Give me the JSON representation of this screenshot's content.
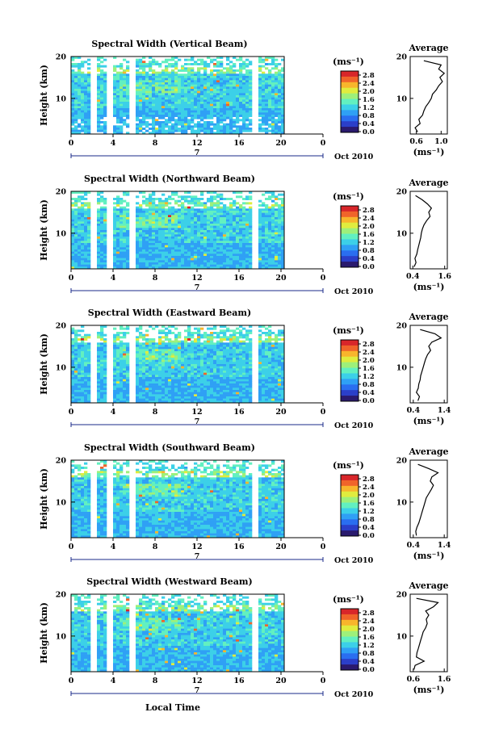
{
  "figure": {
    "date_label": "Oct 2010",
    "day_label": "7",
    "xlabel": "Local Time",
    "ylabel": "Height (km)",
    "colorbar_unit": "(ms⁻¹)",
    "average_title": "Average",
    "average_xlabel": "(ms⁻¹)",
    "colormap": [
      "#2a1a6e",
      "#2b3fc9",
      "#2a6ef0",
      "#2fa0f5",
      "#3cd0e8",
      "#62f0c0",
      "#9ef07a",
      "#e0ec3e",
      "#f8b52c",
      "#f0642a",
      "#d8262a"
    ]
  },
  "chart_data": [
    {
      "type": "heatmap",
      "title": "Spectral Width (Vertical Beam)",
      "x_ticks": [
        "0",
        "4",
        "8",
        "12",
        "16",
        "20",
        "0"
      ],
      "y_ticks": [
        "20",
        "10"
      ],
      "xlim": [
        0,
        24
      ],
      "ylim": [
        1.5,
        20
      ],
      "colorbar_ticks": [
        "2.8",
        "2.4",
        "2.0",
        "1.6",
        "1.2",
        "0.8",
        "0.4",
        "0.0"
      ],
      "data_gaps_hours": [
        2.0,
        3.6,
        5.8,
        17.5
      ],
      "average_profile": {
        "type": "line",
        "x_ticks": [
          "0.6",
          "1.0"
        ],
        "xlim": [
          0.5,
          1.1
        ],
        "y_ticks": [
          "20",
          "10"
        ],
        "ylim": [
          1.5,
          20
        ],
        "height_km": [
          2,
          3,
          4,
          5,
          6,
          7,
          8,
          9,
          10,
          11,
          12,
          13,
          14,
          15,
          16,
          17,
          18,
          19
        ],
        "value": [
          0.62,
          0.58,
          0.66,
          0.64,
          0.7,
          0.72,
          0.75,
          0.8,
          0.84,
          0.86,
          0.92,
          0.96,
          1.02,
          0.98,
          1.05,
          0.96,
          1.0,
          0.72
        ]
      }
    },
    {
      "type": "heatmap",
      "title": "Spectral Width (Northward Beam)",
      "x_ticks": [
        "0",
        "4",
        "8",
        "12",
        "16",
        "20",
        "0"
      ],
      "y_ticks": [
        "20",
        "10"
      ],
      "xlim": [
        0,
        24
      ],
      "ylim": [
        1.5,
        20
      ],
      "colorbar_ticks": [
        "2.8",
        "2.4",
        "2.0",
        "1.6",
        "1.2",
        "0.8",
        "0.4",
        "0.0"
      ],
      "data_gaps_hours": [
        2.0,
        3.6,
        5.8,
        17.5
      ],
      "average_profile": {
        "type": "line",
        "x_ticks": [
          "0.4",
          "1.6"
        ],
        "xlim": [
          0.3,
          1.7
        ],
        "y_ticks": [
          "20",
          "10"
        ],
        "ylim": [
          1.5,
          20
        ],
        "height_km": [
          2,
          3,
          4,
          5,
          6,
          7,
          8,
          9,
          10,
          11,
          12,
          13,
          14,
          15,
          16,
          17,
          18,
          19
        ],
        "value": [
          0.45,
          0.52,
          0.48,
          0.55,
          0.58,
          0.62,
          0.66,
          0.7,
          0.72,
          0.76,
          0.82,
          0.92,
          1.05,
          1.0,
          1.1,
          0.95,
          0.75,
          0.5
        ]
      }
    },
    {
      "type": "heatmap",
      "title": "Spectral Width (Eastward Beam)",
      "x_ticks": [
        "0",
        "4",
        "8",
        "12",
        "16",
        "20",
        "0"
      ],
      "y_ticks": [
        "20",
        "10"
      ],
      "xlim": [
        0,
        24
      ],
      "ylim": [
        1.5,
        20
      ],
      "colorbar_ticks": [
        "2.8",
        "2.4",
        "2.0",
        "1.6",
        "1.2",
        "0.8",
        "0.4",
        "0.0"
      ],
      "data_gaps_hours": [
        2.0,
        3.6,
        5.8,
        17.5
      ],
      "average_profile": {
        "type": "line",
        "x_ticks": [
          "0.4",
          "1.4"
        ],
        "xlim": [
          0.3,
          1.5
        ],
        "y_ticks": [
          "20",
          "10"
        ],
        "ylim": [
          1.5,
          20
        ],
        "height_km": [
          2,
          3,
          4,
          5,
          6,
          7,
          8,
          9,
          10,
          11,
          12,
          13,
          14,
          15,
          16,
          17,
          18,
          19
        ],
        "value": [
          0.55,
          0.6,
          0.5,
          0.56,
          0.58,
          0.62,
          0.64,
          0.68,
          0.72,
          0.76,
          0.8,
          0.86,
          0.96,
          0.9,
          1.0,
          1.3,
          1.1,
          0.62
        ]
      }
    },
    {
      "type": "heatmap",
      "title": "Spectral Width (Southward Beam)",
      "x_ticks": [
        "0",
        "4",
        "8",
        "12",
        "16",
        "20",
        "0"
      ],
      "y_ticks": [
        "20",
        "10"
      ],
      "xlim": [
        0,
        24
      ],
      "ylim": [
        1.5,
        20
      ],
      "colorbar_ticks": [
        "2.8",
        "2.4",
        "2.0",
        "1.6",
        "1.2",
        "0.8",
        "0.4",
        "0.0"
      ],
      "data_gaps_hours": [
        2.0,
        3.6,
        5.8,
        17.5
      ],
      "average_profile": {
        "type": "line",
        "x_ticks": [
          "0.4",
          "1.4"
        ],
        "xlim": [
          0.3,
          1.5
        ],
        "y_ticks": [
          "20",
          "10"
        ],
        "ylim": [
          1.5,
          20
        ],
        "height_km": [
          2,
          3,
          4,
          5,
          6,
          7,
          8,
          9,
          10,
          11,
          12,
          13,
          14,
          15,
          16,
          17,
          18,
          19
        ],
        "value": [
          0.5,
          0.48,
          0.52,
          0.58,
          0.62,
          0.66,
          0.7,
          0.74,
          0.78,
          0.82,
          0.9,
          0.98,
          1.05,
          0.95,
          1.0,
          1.2,
          0.9,
          0.55
        ]
      }
    },
    {
      "type": "heatmap",
      "title": "Spectral Width (Westward Beam)",
      "x_ticks": [
        "0",
        "4",
        "8",
        "12",
        "16",
        "20",
        "0"
      ],
      "y_ticks": [
        "20",
        "10"
      ],
      "xlim": [
        0,
        24
      ],
      "ylim": [
        1.5,
        20
      ],
      "colorbar_ticks": [
        "2.8",
        "2.4",
        "2.0",
        "1.6",
        "1.2",
        "0.8",
        "0.4",
        "0.0"
      ],
      "data_gaps_hours": [
        2.0,
        3.6,
        5.8,
        17.5
      ],
      "average_profile": {
        "type": "line",
        "x_ticks": [
          "0.6",
          "1.6"
        ],
        "xlim": [
          0.5,
          1.7
        ],
        "y_ticks": [
          "20",
          "10"
        ],
        "ylim": [
          1.5,
          20
        ],
        "height_km": [
          2,
          3,
          4,
          5,
          6,
          7,
          8,
          9,
          10,
          11,
          12,
          13,
          14,
          15,
          16,
          17,
          18,
          19
        ],
        "value": [
          0.62,
          0.66,
          0.95,
          0.7,
          0.72,
          0.76,
          0.8,
          0.84,
          0.88,
          0.92,
          1.0,
          1.05,
          1.02,
          1.1,
          1.0,
          1.25,
          1.4,
          0.7
        ]
      }
    }
  ]
}
